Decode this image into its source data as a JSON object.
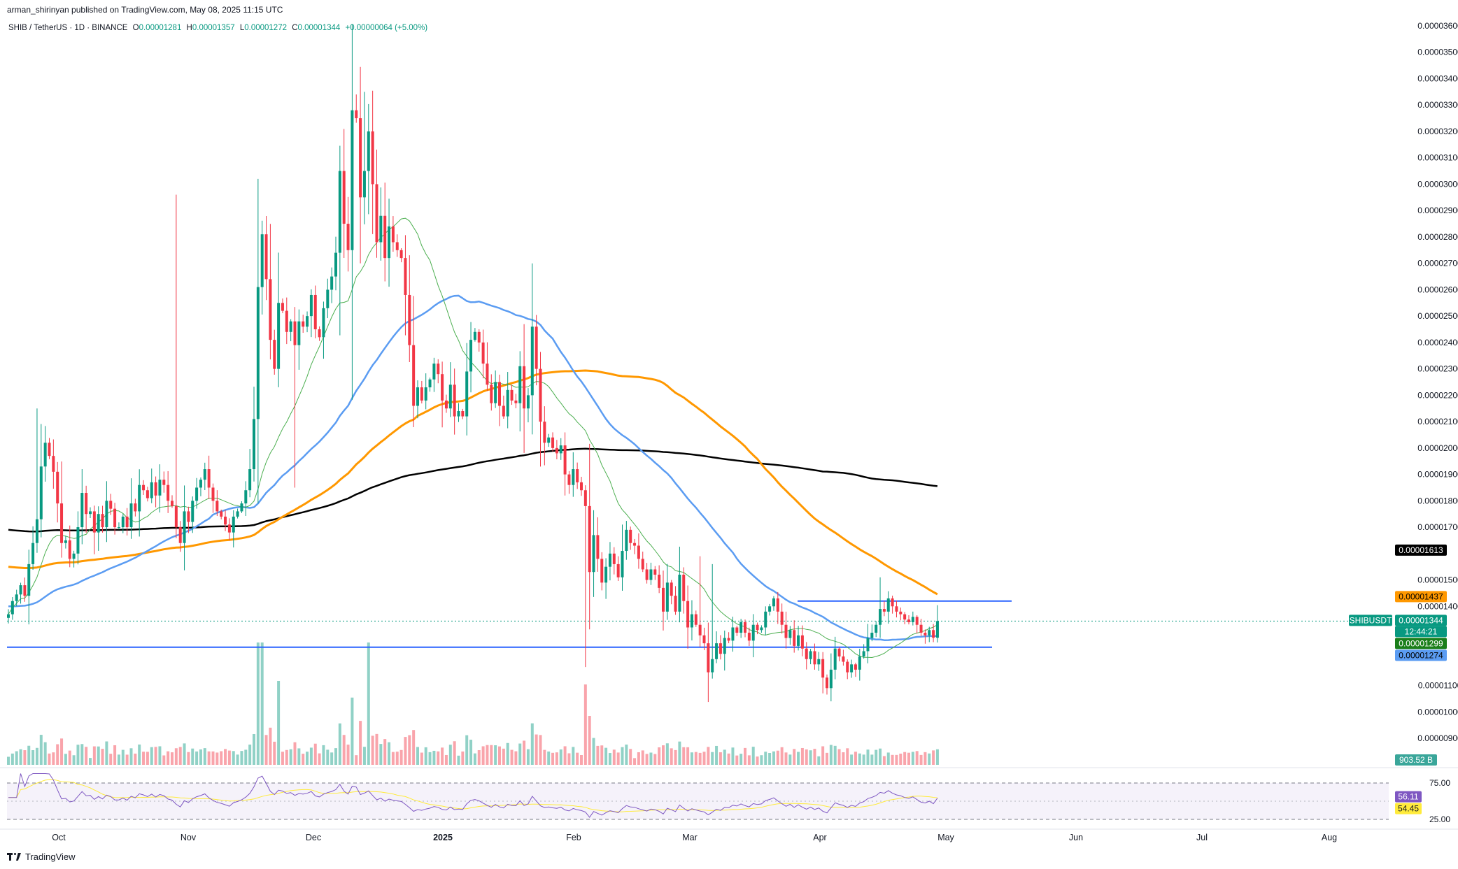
{
  "header": {
    "published": "arman_shirinyan published on TradingView.com, May 08, 2025 11:15 UTC"
  },
  "legend": {
    "symbol": "SHIB / TetherUS · 1D · BINANCE",
    "open_label": "O",
    "open": "0.00001281",
    "high_label": "H",
    "high": "0.00001357",
    "low_label": "L",
    "low": "0.00001272",
    "close_label": "C",
    "close": "0.00001344",
    "change": "+0.00000064 (+5.00%)"
  },
  "footer": {
    "brand": "TradingView"
  },
  "chart_data": {
    "type": "candlestick",
    "colors": {
      "up": "#089981",
      "down": "#f23645",
      "ma20": "#4caf50",
      "ma50": "#5b9cf2",
      "ma100": "#ff9800",
      "ma200": "#000000",
      "rsi": "#7e57c2",
      "rsi_ma": "#ffeb3b",
      "hline": "#2962ff"
    },
    "price_axis": {
      "ylim": [
        8.5e-06,
        3.62e-05
      ],
      "ticks": [
        "0.00003600",
        "0.00003500",
        "0.00003400",
        "0.00003300",
        "0.00003200",
        "0.00003100",
        "0.00003000",
        "0.00002900",
        "0.00002800",
        "0.00002700",
        "0.00002600",
        "0.00002500",
        "0.00002400",
        "0.00002300",
        "0.00002200",
        "0.00002100",
        "0.00002000",
        "0.00001900",
        "0.00001800",
        "0.00001700",
        "0.00001500",
        "0.00001400",
        "0.00001100",
        "0.00001000",
        "0.00000900"
      ]
    },
    "time_axis": [
      "Oct",
      "Nov",
      "Dec",
      "2025",
      "Feb",
      "Mar",
      "Apr",
      "May",
      "Jun",
      "Jul",
      "Aug"
    ],
    "last_price": {
      "symbol": "SHIBUSDT",
      "price": "0.00001344",
      "countdown": "12:44:21"
    },
    "ma_labels": {
      "ma200": "0.00001613",
      "ma100": "0.00001437",
      "ma20": "0.00001299",
      "ma50": "0.00001274"
    },
    "horizontal_lines": [
      {
        "price": 1.42e-05
      },
      {
        "price": 1.245e-05
      }
    ],
    "volume_label": "903.52 B",
    "rsi": {
      "ticks": [
        "75.00",
        "25.00"
      ],
      "value": "56.11",
      "ma_value": "54.45"
    },
    "closes": [
      1.37e-05,
      1.42e-05,
      1.445e-05,
      1.48e-05,
      1.44e-05,
      1.56e-05,
      1.64e-05,
      1.73e-05,
      1.93e-05,
      2.02e-05,
      1.97e-05,
      1.91e-05,
      1.79e-05,
      1.64e-05,
      1.65e-05,
      1.58e-05,
      1.6e-05,
      1.7e-05,
      1.83e-05,
      1.75e-05,
      1.76e-05,
      1.68e-05,
      1.75e-05,
      1.7e-05,
      1.8e-05,
      1.77e-05,
      1.7e-05,
      1.7e-05,
      1.74e-05,
      1.7e-05,
      1.79e-05,
      1.76e-05,
      1.86e-05,
      1.84e-05,
      1.81e-05,
      1.87e-05,
      1.82e-05,
      1.88e-05,
      1.86e-05,
      1.8e-05,
      1.78e-05,
      1.7e-05,
      1.64e-05,
      1.76e-05,
      1.72e-05,
      1.8e-05,
      1.85e-05,
      1.88e-05,
      1.92e-05,
      1.85e-05,
      1.8e-05,
      1.76e-05,
      1.74e-05,
      1.71e-05,
      1.68e-05,
      1.74e-05,
      1.76e-05,
      1.79e-05,
      1.84e-05,
      1.92e-05,
      2.11e-05,
      2.61e-05,
      2.81e-05,
      2.64e-05,
      2.41e-05,
      2.3e-05,
      2.55e-05,
      2.52e-05,
      2.44e-05,
      2.48e-05,
      2.39e-05,
      2.48e-05,
      2.46e-05,
      2.5e-05,
      2.58e-05,
      2.45e-05,
      2.42e-05,
      2.53e-05,
      2.6e-05,
      2.65e-05,
      2.74e-05,
      3.05e-05,
      2.85e-05,
      2.75e-05,
      3.28e-05,
      3.25e-05,
      2.95e-05,
      3.05e-05,
      3.2e-05,
      3e-05,
      2.78e-05,
      2.88e-05,
      2.72e-05,
      2.84e-05,
      2.78e-05,
      2.75e-05,
      2.72e-05,
      2.58e-05,
      2.39e-05,
      2.16e-05,
      2.23e-05,
      2.18e-05,
      2.23e-05,
      2.26e-05,
      2.32e-05,
      2.28e-05,
      2.18e-05,
      2.15e-05,
      2.24e-05,
      2.12e-05,
      2.14e-05,
      2.12e-05,
      2.29e-05,
      2.41e-05,
      2.44e-05,
      2.4e-05,
      2.32e-05,
      2.24e-05,
      2.17e-05,
      2.25e-05,
      2.16e-05,
      2.12e-05,
      2.22e-05,
      2.18e-05,
      2.17e-05,
      2.31e-05,
      2.15e-05,
      2.2e-05,
      2.46e-05,
      2.3e-05,
      2.1e-05,
      2.02e-05,
      2.04e-05,
      2e-05,
      1.98e-05,
      2.01e-05,
      1.9e-05,
      1.86e-05,
      1.92e-05,
      1.87e-05,
      1.84e-05,
      1.78e-05,
      1.53e-05,
      1.67e-05,
      1.58e-05,
      1.49e-05,
      1.55e-05,
      1.6e-05,
      1.56e-05,
      1.51e-05,
      1.61e-05,
      1.69e-05,
      1.64e-05,
      1.63e-05,
      1.58e-05,
      1.54e-05,
      1.5e-05,
      1.54e-05,
      1.52e-05,
      1.47e-05,
      1.38e-05,
      1.49e-05,
      1.44e-05,
      1.38e-05,
      1.52e-05,
      1.42e-05,
      1.32e-05,
      1.37e-05,
      1.33e-05,
      1.29e-05,
      1.26e-05,
      1.15e-05,
      1.2e-05,
      1.26e-05,
      1.22e-05,
      1.28e-05,
      1.27e-05,
      1.32e-05,
      1.3e-05,
      1.34e-05,
      1.3e-05,
      1.27e-05,
      1.33e-05,
      1.31e-05,
      1.32e-05,
      1.38e-05,
      1.4e-05,
      1.43e-05,
      1.38e-05,
      1.33e-05,
      1.28e-05,
      1.31e-05,
      1.25e-05,
      1.29e-05,
      1.24e-05,
      1.2e-05,
      1.23e-05,
      1.18e-05,
      1.2e-05,
      1.13e-05,
      1.09e-05,
      1.16e-05,
      1.24e-05,
      1.21e-05,
      1.19e-05,
      1.15e-05,
      1.18e-05,
      1.16e-05,
      1.21e-05,
      1.23e-05,
      1.28e-05,
      1.3e-05,
      1.33e-05,
      1.39e-05,
      1.38e-05,
      1.43e-05,
      1.4e-05,
      1.38e-05,
      1.37e-05,
      1.35e-05,
      1.34e-05,
      1.36e-05,
      1.33e-05,
      1.3e-05,
      1.29e-05,
      1.31e-05,
      1.281e-05,
      1.344e-05
    ]
  }
}
